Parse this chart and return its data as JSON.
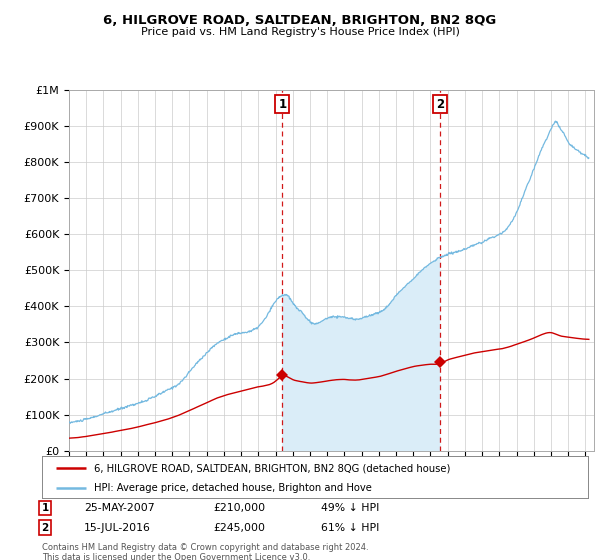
{
  "title": "6, HILGROVE ROAD, SALTDEAN, BRIGHTON, BN2 8QG",
  "subtitle": "Price paid vs. HM Land Registry's House Price Index (HPI)",
  "ylabel_values": [
    "£0",
    "£100K",
    "£200K",
    "£300K",
    "£400K",
    "£500K",
    "£600K",
    "£700K",
    "£800K",
    "£900K",
    "£1M"
  ],
  "yticks": [
    0,
    100000,
    200000,
    300000,
    400000,
    500000,
    600000,
    700000,
    800000,
    900000,
    1000000
  ],
  "xlim_start": 1995.0,
  "xlim_end": 2025.5,
  "ylim_top": 1000000,
  "legend_line1": "6, HILGROVE ROAD, SALTDEAN, BRIGHTON, BN2 8QG (detached house)",
  "legend_line2": "HPI: Average price, detached house, Brighton and Hove",
  "transaction1_date": 2007.39,
  "transaction1_price": 210000,
  "transaction1_label": "1",
  "transaction2_date": 2016.54,
  "transaction2_price": 245000,
  "transaction2_label": "2",
  "footer": "Contains HM Land Registry data © Crown copyright and database right 2024.\nThis data is licensed under the Open Government Licence v3.0.",
  "hpi_color": "#74b9e0",
  "hpi_fill_color": "#daedf8",
  "price_color": "#cc0000",
  "vline_color": "#cc0000",
  "bg_color": "#ffffff",
  "grid_color": "#cccccc",
  "table_row1_date": "25-MAY-2007",
  "table_row1_price": "£210,000",
  "table_row1_pct": "49% ↓ HPI",
  "table_row2_date": "15-JUL-2016",
  "table_row2_price": "£245,000",
  "table_row2_pct": "61% ↓ HPI"
}
